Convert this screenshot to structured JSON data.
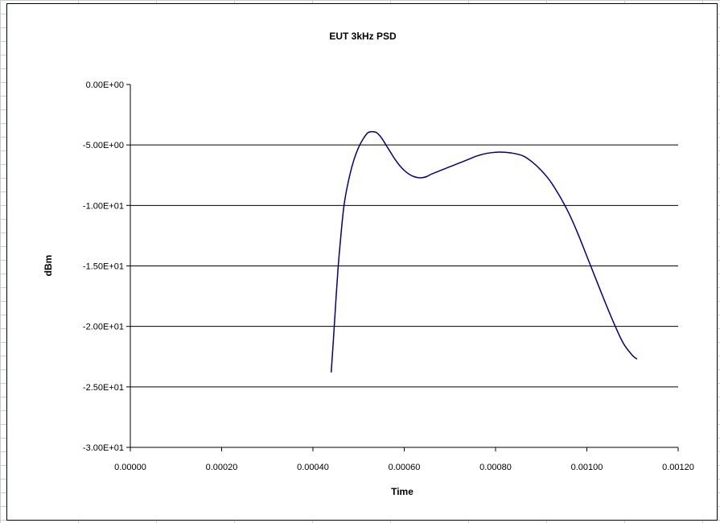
{
  "chart_data": {
    "type": "line",
    "title": "EUT 3kHz PSD",
    "xlabel": "Time",
    "ylabel": "dBm",
    "xlim": [
      0,
      0.0012
    ],
    "ylim": [
      -30,
      0
    ],
    "x_ticks": [
      "0.00000",
      "0.00020",
      "0.00040",
      "0.00060",
      "0.00080",
      "0.00100",
      "0.00120"
    ],
    "y_ticks": [
      "0.00E+00",
      "-5.00E+00",
      "-1.00E+01",
      "-1.50E+01",
      "-2.00E+01",
      "-2.50E+01",
      "-3.00E+01"
    ],
    "grid": "horizontal",
    "legend": "none",
    "series": [
      {
        "color": "#000080",
        "x": [
          0.00044,
          0.000445,
          0.00045,
          0.000455,
          0.00046,
          0.000465,
          0.00047,
          0.00048,
          0.00049,
          0.0005,
          0.00051,
          0.00052,
          0.00053,
          0.00054,
          0.00055,
          0.00056,
          0.00057,
          0.00058,
          0.00059,
          0.0006,
          0.00061,
          0.00062,
          0.00063,
          0.00064,
          0.00065,
          0.00066,
          0.00068,
          0.0007,
          0.00072,
          0.00074,
          0.00076,
          0.00078,
          0.0008,
          0.00082,
          0.00084,
          0.00086,
          0.00088,
          0.0009,
          0.00092,
          0.00094,
          0.00096,
          0.00098,
          0.001,
          0.00102,
          0.00104,
          0.00106,
          0.00108,
          0.0011,
          0.00111
        ],
        "y": [
          -23.8,
          -21.0,
          -18.0,
          -15.2,
          -13.0,
          -11.0,
          -9.5,
          -7.6,
          -6.2,
          -5.2,
          -4.5,
          -4.0,
          -3.9,
          -4.0,
          -4.4,
          -5.0,
          -5.6,
          -6.2,
          -6.7,
          -7.1,
          -7.4,
          -7.6,
          -7.7,
          -7.7,
          -7.6,
          -7.4,
          -7.1,
          -6.8,
          -6.5,
          -6.2,
          -5.9,
          -5.7,
          -5.6,
          -5.6,
          -5.7,
          -5.9,
          -6.4,
          -7.1,
          -8.0,
          -9.2,
          -10.6,
          -12.3,
          -14.2,
          -16.1,
          -18.0,
          -19.8,
          -21.4,
          -22.4,
          -22.7
        ]
      }
    ]
  }
}
